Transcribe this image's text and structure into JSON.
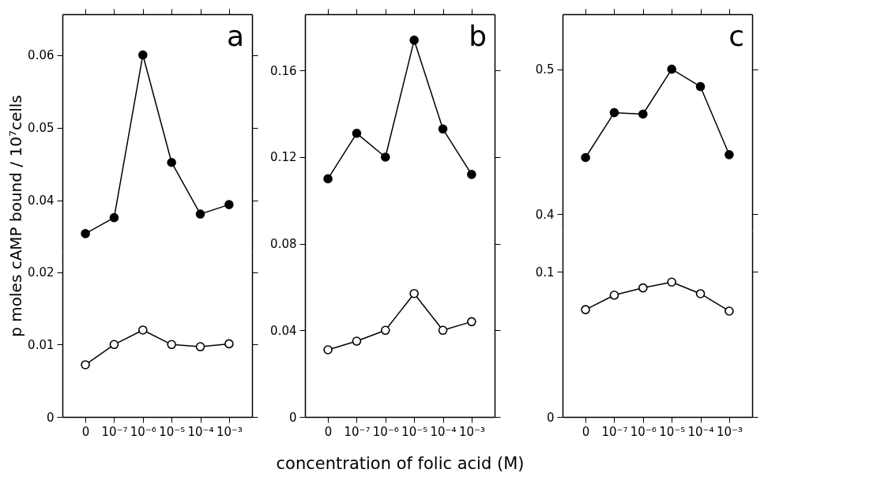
{
  "chart_data": [
    {
      "type": "line",
      "categories": [
        null,
        null,
        null,
        null,
        null,
        null
      ],
      "ylabel": "p moles cAMP bound / 10⁷cells",
      "annotations": [
        "a"
      ],
      "marker": "circle",
      "ylim": [
        0.033,
        0.0656
      ],
      "yticks": [
        0.04,
        0.05,
        0.06
      ],
      "tick_labels": "y",
      "series": [
        {
          "color": "#000000",
          "values": [
            0.0354,
            0.0376,
            0.06,
            0.0452,
            0.0381,
            0.0394
          ]
        }
      ]
    },
    {
      "type": "line",
      "categories": [
        "0",
        "10⁻⁷",
        "10⁻⁶",
        "10⁻⁵",
        "10⁻⁴",
        "10⁻³"
      ],
      "marker": "circle",
      "ylim": [
        0,
        0.0229
      ],
      "yticks": [
        0,
        0.01,
        0.02
      ],
      "series": [
        {
          "color": "#ffffff",
          "values": [
            0.0072,
            0.01,
            0.012,
            0.01,
            0.0097,
            0.0101
          ]
        }
      ]
    },
    {
      "type": "line",
      "categories": [
        "0",
        "10⁻⁷",
        "10⁻⁶",
        "10⁻⁵",
        "10⁻⁴",
        "10⁻³"
      ],
      "xlabel": "concentration of folic acid (M)",
      "annotations": [
        "b"
      ],
      "marker": "circle",
      "ylim": [
        0,
        0.186
      ],
      "yticks": [
        0,
        0.04,
        0.08,
        0.12,
        0.16
      ],
      "series": [
        {
          "color": "#000000",
          "values": [
            0.11,
            0.131,
            0.12,
            0.174,
            0.133,
            0.112
          ]
        },
        {
          "color": "#ffffff",
          "values": [
            0.031,
            0.035,
            0.04,
            0.057,
            0.04,
            0.044
          ]
        }
      ]
    },
    {
      "type": "line",
      "categories": [
        null,
        null,
        null,
        null,
        null,
        null
      ],
      "annotations": [
        "c"
      ],
      "marker": "circle",
      "ylim": [
        0.388,
        0.538
      ],
      "yticks": [
        0.4,
        0.5
      ],
      "tick_labels": "y",
      "series": [
        {
          "color": "#000000",
          "values": [
            0.439,
            0.47,
            0.469,
            0.5,
            0.488,
            0.441
          ]
        }
      ]
    },
    {
      "type": "line",
      "categories": [
        "0",
        "10⁻⁷",
        "10⁻⁶",
        "10⁻⁵",
        "10⁻⁴",
        "10⁻³"
      ],
      "marker": "circle",
      "ylim": [
        0,
        0.128
      ],
      "yticks": [
        0,
        0.1
      ],
      "series": [
        {
          "color": "#ffffff",
          "values": [
            0.074,
            0.084,
            0.089,
            0.093,
            0.085,
            0.073
          ]
        }
      ]
    }
  ]
}
